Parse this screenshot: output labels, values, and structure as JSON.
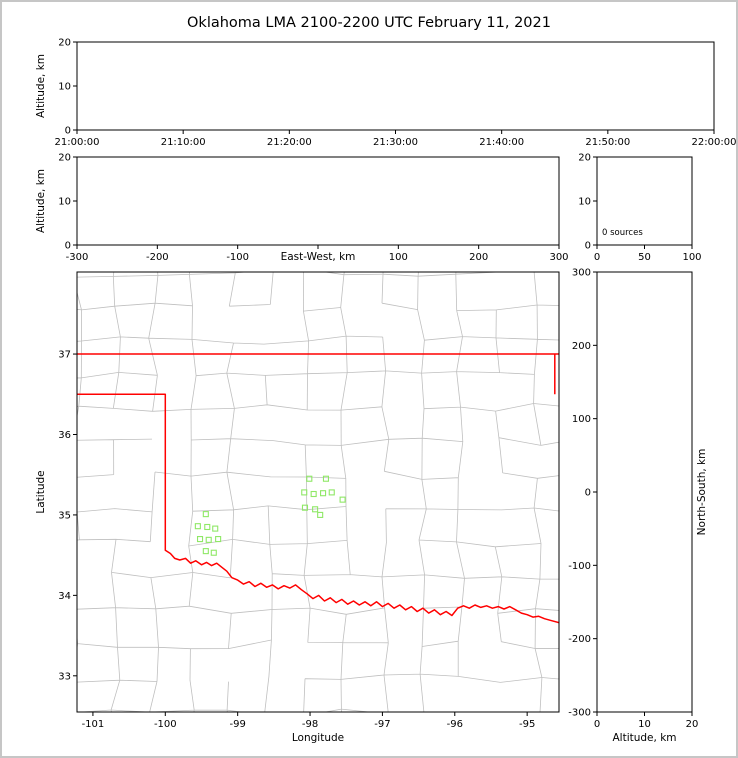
{
  "title": "Oklahoma LMA 2100-2200 UTC February 11, 2021",
  "colors": {
    "background": "#ffffff",
    "frame": "#000000",
    "county_lines": "#bfbfbf",
    "state_border": "#ff0000",
    "source_marker": "#8fe866",
    "outer_border": "#c6c6c6",
    "text": "#000000"
  },
  "chart_data": [
    {
      "id": "time-height",
      "type": "scatter",
      "xlabel": "",
      "ylabel": "Altitude, km",
      "xlim": [
        0,
        3600
      ],
      "xticks": [
        0,
        600,
        1200,
        1800,
        2400,
        3000,
        3600
      ],
      "xtick_labels": [
        "21:00:00",
        "21:10:00",
        "21:20:00",
        "21:30:00",
        "21:40:00",
        "21:50:00",
        "22:00:00"
      ],
      "ylim": [
        0,
        20
      ],
      "yticks": [
        0,
        10,
        20
      ],
      "ytick_labels": [
        "0",
        "10",
        "20"
      ],
      "grid": false,
      "points": []
    },
    {
      "id": "ew-height",
      "type": "scatter",
      "xlabel": "East-West, km",
      "ylabel": "Altitude, km",
      "xlim": [
        -300,
        300
      ],
      "xticks": [
        -300,
        -200,
        -100,
        0,
        100,
        200,
        300
      ],
      "xtick_labels": [
        "-300",
        "-200",
        "-100",
        "0",
        "100",
        "200",
        "300"
      ],
      "ylim": [
        0,
        20
      ],
      "yticks": [
        0,
        10,
        20
      ],
      "ytick_labels": [
        "0",
        "10",
        "20"
      ],
      "grid": false,
      "points": []
    },
    {
      "id": "alt-histogram",
      "type": "line",
      "xlabel": "",
      "ylabel": "",
      "xlim": [
        0,
        100
      ],
      "xticks": [
        0,
        50,
        100
      ],
      "xtick_labels": [
        "0",
        "50",
        "100"
      ],
      "ylim": [
        0,
        20
      ],
      "yticks": [
        0,
        10,
        20
      ],
      "ytick_labels": [
        "0",
        "10",
        "20"
      ],
      "annotation": "0 sources",
      "grid": false,
      "points": []
    },
    {
      "id": "plan-view",
      "type": "scatter",
      "xlabel": "Longitude",
      "ylabel": "Latitude",
      "xlim": [
        -101.22,
        -94.56
      ],
      "xticks": [
        -101,
        -100,
        -99,
        -98,
        -97,
        -96,
        -95
      ],
      "xtick_labels": [
        "-101",
        "-100",
        "-99",
        "-98",
        "-97",
        "-96",
        "-95"
      ],
      "ylim": [
        32.55,
        38.02
      ],
      "yticks": [
        33,
        34,
        35,
        36,
        37
      ],
      "ytick_labels": [
        "33",
        "34",
        "35",
        "36",
        "37"
      ],
      "marker": "open-square",
      "grid": false,
      "points": [
        [
          -98.01,
          35.45
        ],
        [
          -97.78,
          35.45
        ],
        [
          -98.08,
          35.28
        ],
        [
          -97.95,
          35.26
        ],
        [
          -97.82,
          35.27
        ],
        [
          -97.7,
          35.28
        ],
        [
          -97.55,
          35.19
        ],
        [
          -98.07,
          35.09
        ],
        [
          -97.93,
          35.07
        ],
        [
          -97.86,
          35.0
        ],
        [
          -99.44,
          35.01
        ],
        [
          -99.55,
          34.86
        ],
        [
          -99.42,
          34.85
        ],
        [
          -99.31,
          34.83
        ],
        [
          -99.52,
          34.7
        ],
        [
          -99.4,
          34.69
        ],
        [
          -99.27,
          34.7
        ],
        [
          -99.44,
          34.55
        ],
        [
          -99.33,
          34.53
        ]
      ]
    },
    {
      "id": "ns-height",
      "type": "scatter",
      "xlabel": "Altitude, km",
      "ylabel": "North-South, km",
      "xlim": [
        0,
        20
      ],
      "xticks": [
        0,
        10,
        20
      ],
      "xtick_labels": [
        "0",
        "10",
        "20"
      ],
      "ylim": [
        -300,
        300
      ],
      "yticks": [
        -300,
        -200,
        -100,
        0,
        100,
        200,
        300
      ],
      "ytick_labels": [
        "-300",
        "-200",
        "-100",
        "0",
        "100",
        "200",
        "300"
      ],
      "grid": false,
      "points": []
    }
  ],
  "map_overlay": {
    "kansas_border_lat": 37.0,
    "panhandle_border": [
      [
        -101.22,
        36.5
      ],
      [
        -100.0,
        36.5
      ],
      [
        -100.0,
        34.56
      ]
    ],
    "missouri_border": [
      [
        -94.618,
        36.5
      ],
      [
        -94.618,
        37.0
      ]
    ],
    "red_river": [
      [
        -100.0,
        34.56
      ],
      [
        -99.93,
        34.52
      ],
      [
        -99.87,
        34.46
      ],
      [
        -99.8,
        34.44
      ],
      [
        -99.72,
        34.46
      ],
      [
        -99.65,
        34.4
      ],
      [
        -99.58,
        34.43
      ],
      [
        -99.5,
        34.38
      ],
      [
        -99.43,
        34.41
      ],
      [
        -99.36,
        34.37
      ],
      [
        -99.29,
        34.4
      ],
      [
        -99.22,
        34.35
      ],
      [
        -99.15,
        34.3
      ],
      [
        -99.08,
        34.22
      ],
      [
        -99.0,
        34.19
      ],
      [
        -98.92,
        34.14
      ],
      [
        -98.84,
        34.17
      ],
      [
        -98.76,
        34.11
      ],
      [
        -98.68,
        34.15
      ],
      [
        -98.6,
        34.1
      ],
      [
        -98.52,
        34.13
      ],
      [
        -98.44,
        34.08
      ],
      [
        -98.36,
        34.12
      ],
      [
        -98.28,
        34.09
      ],
      [
        -98.2,
        34.13
      ],
      [
        -98.12,
        34.07
      ],
      [
        -98.04,
        34.02
      ],
      [
        -97.96,
        33.96
      ],
      [
        -97.88,
        34.0
      ],
      [
        -97.8,
        33.93
      ],
      [
        -97.72,
        33.97
      ],
      [
        -97.64,
        33.91
      ],
      [
        -97.56,
        33.95
      ],
      [
        -97.48,
        33.89
      ],
      [
        -97.4,
        33.93
      ],
      [
        -97.32,
        33.88
      ],
      [
        -97.24,
        33.92
      ],
      [
        -97.16,
        33.87
      ],
      [
        -97.08,
        33.92
      ],
      [
        -97.0,
        33.86
      ],
      [
        -96.92,
        33.9
      ],
      [
        -96.84,
        33.84
      ],
      [
        -96.76,
        33.88
      ],
      [
        -96.68,
        33.82
      ],
      [
        -96.6,
        33.86
      ],
      [
        -96.52,
        33.8
      ],
      [
        -96.44,
        33.84
      ],
      [
        -96.36,
        33.78
      ],
      [
        -96.28,
        33.82
      ],
      [
        -96.2,
        33.76
      ],
      [
        -96.12,
        33.8
      ],
      [
        -96.04,
        33.75
      ],
      [
        -95.96,
        33.84
      ],
      [
        -95.88,
        33.87
      ],
      [
        -95.8,
        33.84
      ],
      [
        -95.72,
        33.88
      ],
      [
        -95.64,
        33.85
      ],
      [
        -95.56,
        33.87
      ],
      [
        -95.48,
        33.84
      ],
      [
        -95.4,
        33.86
      ],
      [
        -95.32,
        33.83
      ],
      [
        -95.24,
        33.86
      ],
      [
        -95.16,
        33.82
      ],
      [
        -95.08,
        33.78
      ],
      [
        -95.0,
        33.76
      ],
      [
        -94.92,
        33.73
      ],
      [
        -94.84,
        33.74
      ],
      [
        -94.76,
        33.71
      ],
      [
        -94.68,
        33.69
      ],
      [
        -94.56,
        33.66
      ]
    ],
    "county_grid": {
      "lon_step": 0.53,
      "lat_step": 0.42,
      "jitter": 0.14,
      "skip": 0.18,
      "seed": 42
    }
  }
}
